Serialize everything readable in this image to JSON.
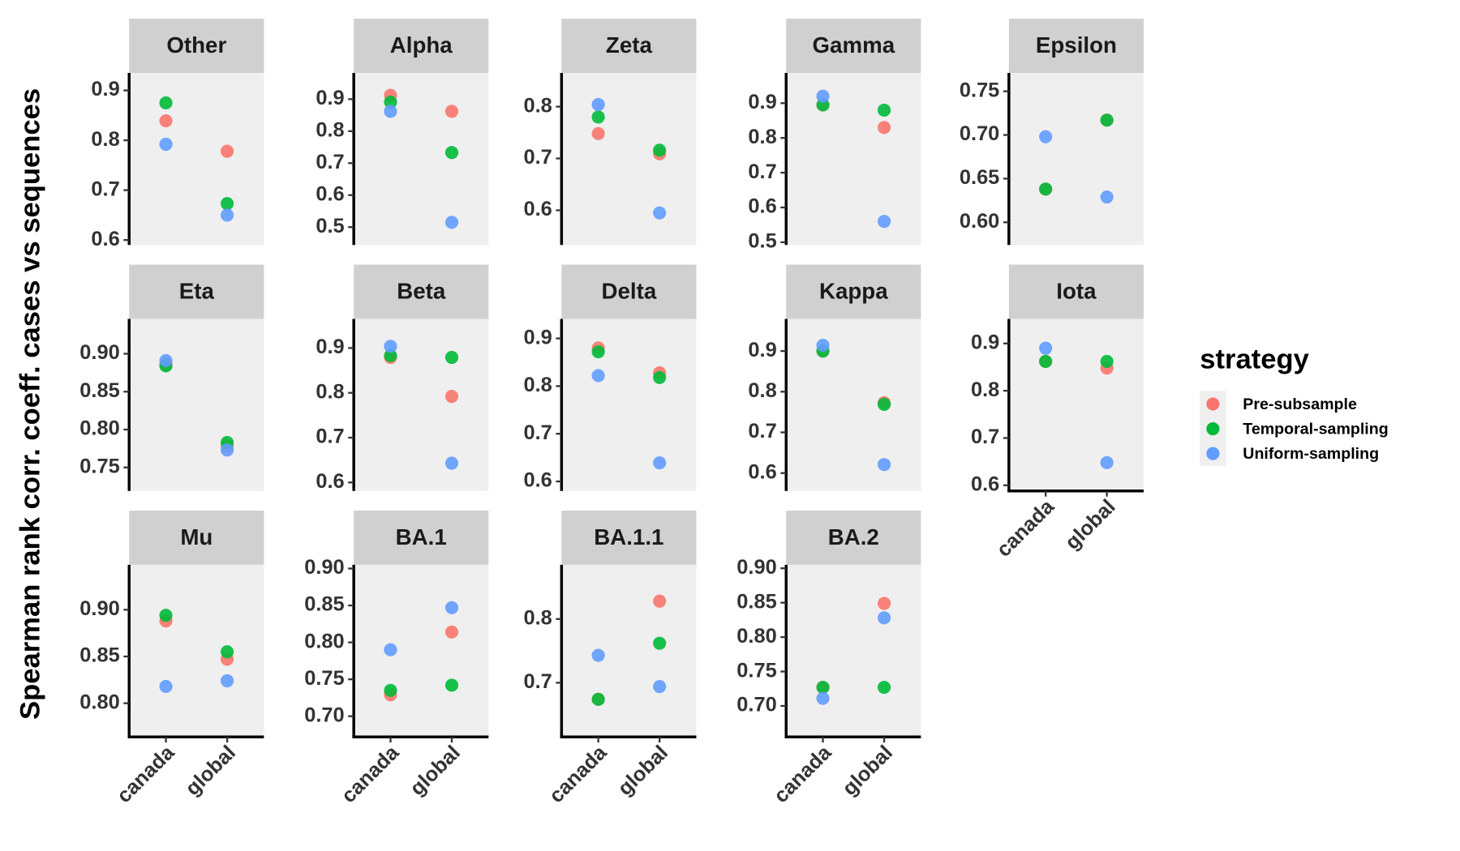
{
  "y_label": "Spearman rank corr. coeff. cases vs sequences",
  "legend": {
    "title": "strategy"
  },
  "chart_data": [
    {
      "type": "scatter",
      "title": "Other",
      "categories": [
        null,
        null
      ],
      "ylim": [
        0.59,
        0.935
      ],
      "yticks": [
        0.6,
        0.7,
        0.8,
        0.9
      ],
      "series": [
        {
          "name": "Pre-subsample",
          "color": "#F8766D",
          "values": [
            0.839,
            0.778
          ]
        },
        {
          "name": "Temporal-sampling",
          "color": "#00BA38",
          "values": [
            0.875,
            0.673
          ]
        },
        {
          "name": "Uniform-sampling",
          "color": "#619CFF",
          "values": [
            0.792,
            0.65
          ]
        }
      ]
    },
    {
      "type": "scatter",
      "title": "Alpha",
      "categories": [
        null,
        null
      ],
      "ylim": [
        0.444,
        0.982
      ],
      "yticks": [
        0.5,
        0.6,
        0.7,
        0.8,
        0.9
      ],
      "series": [
        {
          "name": "Pre-subsample",
          "color": "#F8766D",
          "values": [
            0.912,
            0.862
          ]
        },
        {
          "name": "Temporal-sampling",
          "color": "#00BA38",
          "values": [
            0.891,
            0.733
          ]
        },
        {
          "name": "Uniform-sampling",
          "color": "#619CFF",
          "values": [
            0.862,
            0.515
          ]
        }
      ]
    },
    {
      "type": "scatter",
      "title": "Zeta",
      "categories": [
        null,
        null
      ],
      "ylim": [
        0.533,
        0.865
      ],
      "yticks": [
        0.6,
        0.7,
        0.8
      ],
      "series": [
        {
          "name": "Pre-subsample",
          "color": "#F8766D",
          "values": [
            0.748,
            0.709
          ]
        },
        {
          "name": "Temporal-sampling",
          "color": "#00BA38",
          "values": [
            0.78,
            0.716
          ]
        },
        {
          "name": "Uniform-sampling",
          "color": "#619CFF",
          "values": [
            0.804,
            0.595
          ]
        }
      ]
    },
    {
      "type": "scatter",
      "title": "Gamma",
      "categories": [
        null,
        null
      ],
      "ylim": [
        0.492,
        0.987
      ],
      "yticks": [
        0.5,
        0.6,
        0.7,
        0.8,
        0.9
      ],
      "series": [
        {
          "name": "Pre-subsample",
          "color": "#F8766D",
          "values": [
            0.895,
            0.83
          ]
        },
        {
          "name": "Temporal-sampling",
          "color": "#00BA38",
          "values": [
            0.895,
            0.88
          ]
        },
        {
          "name": "Uniform-sampling",
          "color": "#619CFF",
          "values": [
            0.92,
            0.56
          ]
        }
      ]
    },
    {
      "type": "scatter",
      "title": "Epsilon",
      "categories": [
        null,
        null
      ],
      "ylim": [
        0.574,
        0.771
      ],
      "yticks": [
        {
          "value": 0.6,
          "label": "0.60"
        },
        0.65,
        {
          "value": 0.7,
          "label": "0.70"
        },
        0.75
      ],
      "series": [
        {
          "name": "Pre-subsample",
          "color": "#F8766D",
          "values": [
            0.638,
            0.717
          ]
        },
        {
          "name": "Temporal-sampling",
          "color": "#00BA38",
          "values": [
            0.638,
            0.717
          ]
        },
        {
          "name": "Uniform-sampling",
          "color": "#619CFF",
          "values": [
            0.698,
            0.629
          ]
        }
      ]
    },
    {
      "type": "scatter",
      "title": "Eta",
      "categories": [
        null,
        null
      ],
      "ylim": [
        0.719,
        0.946
      ],
      "yticks": [
        0.75,
        {
          "value": 0.8,
          "label": "0.80"
        },
        0.85,
        {
          "value": 0.9,
          "label": "0.90"
        }
      ],
      "series": [
        {
          "name": "Pre-subsample",
          "color": "#F8766D",
          "values": [
            0.886,
            0.778
          ]
        },
        {
          "name": "Temporal-sampling",
          "color": "#00BA38",
          "values": [
            0.884,
            0.783
          ]
        },
        {
          "name": "Uniform-sampling",
          "color": "#619CFF",
          "values": [
            0.891,
            0.773
          ]
        }
      ]
    },
    {
      "type": "scatter",
      "title": "Beta",
      "categories": [
        null,
        null
      ],
      "ylim": [
        0.581,
        0.965
      ],
      "yticks": [
        0.6,
        0.7,
        0.8,
        0.9
      ],
      "series": [
        {
          "name": "Pre-subsample",
          "color": "#F8766D",
          "values": [
            0.879,
            0.792
          ]
        },
        {
          "name": "Temporal-sampling",
          "color": "#00BA38",
          "values": [
            0.883,
            0.879
          ]
        },
        {
          "name": "Uniform-sampling",
          "color": "#619CFF",
          "values": [
            0.904,
            0.643
          ]
        }
      ]
    },
    {
      "type": "scatter",
      "title": "Delta",
      "categories": [
        null,
        null
      ],
      "ylim": [
        0.58,
        0.941
      ],
      "yticks": [
        0.6,
        0.7,
        0.8,
        0.9
      ],
      "series": [
        {
          "name": "Pre-subsample",
          "color": "#F8766D",
          "values": [
            0.88,
            0.828
          ]
        },
        {
          "name": "Temporal-sampling",
          "color": "#00BA38",
          "values": [
            0.872,
            0.818
          ]
        },
        {
          "name": "Uniform-sampling",
          "color": "#619CFF",
          "values": [
            0.822,
            0.639
          ]
        }
      ]
    },
    {
      "type": "scatter",
      "title": "Kappa",
      "categories": [
        null,
        null
      ],
      "ylim": [
        0.556,
        0.979
      ],
      "yticks": [
        0.6,
        0.7,
        0.8,
        0.9
      ],
      "series": [
        {
          "name": "Pre-subsample",
          "color": "#F8766D",
          "values": [
            0.9,
            0.773
          ]
        },
        {
          "name": "Temporal-sampling",
          "color": "#00BA38",
          "values": [
            0.9,
            0.769
          ]
        },
        {
          "name": "Uniform-sampling",
          "color": "#619CFF",
          "values": [
            0.914,
            0.621
          ]
        }
      ]
    },
    {
      "type": "scatter",
      "title": "Iota",
      "categories": [
        "canada",
        "global"
      ],
      "ylim": [
        0.588,
        0.952
      ],
      "yticks": [
        0.6,
        0.7,
        0.8,
        0.9
      ],
      "series": [
        {
          "name": "Pre-subsample",
          "color": "#F8766D",
          "values": [
            0.862,
            0.848
          ]
        },
        {
          "name": "Temporal-sampling",
          "color": "#00BA38",
          "values": [
            0.862,
            0.862
          ]
        },
        {
          "name": "Uniform-sampling",
          "color": "#619CFF",
          "values": [
            0.89,
            0.648
          ]
        }
      ]
    },
    {
      "type": "scatter",
      "title": "Mu",
      "categories": [
        "canada",
        "global"
      ],
      "ylim": [
        0.764,
        0.948
      ],
      "yticks": [
        {
          "value": 0.8,
          "label": "0.80"
        },
        0.85,
        {
          "value": 0.9,
          "label": "0.90"
        }
      ],
      "series": [
        {
          "name": "Pre-subsample",
          "color": "#F8766D",
          "values": [
            0.888,
            0.847
          ]
        },
        {
          "name": "Temporal-sampling",
          "color": "#00BA38",
          "values": [
            0.894,
            0.855
          ]
        },
        {
          "name": "Uniform-sampling",
          "color": "#619CFF",
          "values": [
            0.818,
            0.824
          ]
        }
      ]
    },
    {
      "type": "scatter",
      "title": "BA.1",
      "categories": [
        "canada",
        "global"
      ],
      "ylim": [
        0.672,
        0.905
      ],
      "yticks": [
        {
          "value": 0.7,
          "label": "0.70"
        },
        0.75,
        {
          "value": 0.8,
          "label": "0.80"
        },
        0.85,
        {
          "value": 0.9,
          "label": "0.90"
        }
      ],
      "series": [
        {
          "name": "Pre-subsample",
          "color": "#F8766D",
          "values": [
            0.729,
            0.814
          ]
        },
        {
          "name": "Temporal-sampling",
          "color": "#00BA38",
          "values": [
            0.735,
            0.742
          ]
        },
        {
          "name": "Uniform-sampling",
          "color": "#619CFF",
          "values": [
            0.79,
            0.847
          ]
        }
      ]
    },
    {
      "type": "scatter",
      "title": "BA.1.1",
      "categories": [
        "canada",
        "global"
      ],
      "ylim": [
        0.615,
        0.885
      ],
      "yticks": [
        0.7,
        0.8
      ],
      "series": [
        {
          "name": "Pre-subsample",
          "color": "#F8766D",
          "values": [
            0.674,
            0.828
          ]
        },
        {
          "name": "Temporal-sampling",
          "color": "#00BA38",
          "values": [
            0.674,
            0.762
          ]
        },
        {
          "name": "Uniform-sampling",
          "color": "#619CFF",
          "values": [
            0.743,
            0.694
          ]
        }
      ]
    },
    {
      "type": "scatter",
      "title": "BA.2",
      "categories": [
        "canada",
        "global"
      ],
      "ylim": [
        0.655,
        0.905
      ],
      "yticks": [
        {
          "value": 0.7,
          "label": "0.70"
        },
        0.75,
        {
          "value": 0.8,
          "label": "0.80"
        },
        0.85,
        {
          "value": 0.9,
          "label": "0.90"
        }
      ],
      "series": [
        {
          "name": "Pre-subsample",
          "color": "#F8766D",
          "values": [
            0.727,
            0.849
          ]
        },
        {
          "name": "Temporal-sampling",
          "color": "#00BA38",
          "values": [
            0.727,
            0.727
          ]
        },
        {
          "name": "Uniform-sampling",
          "color": "#619CFF",
          "values": [
            0.711,
            0.828
          ]
        }
      ]
    }
  ]
}
